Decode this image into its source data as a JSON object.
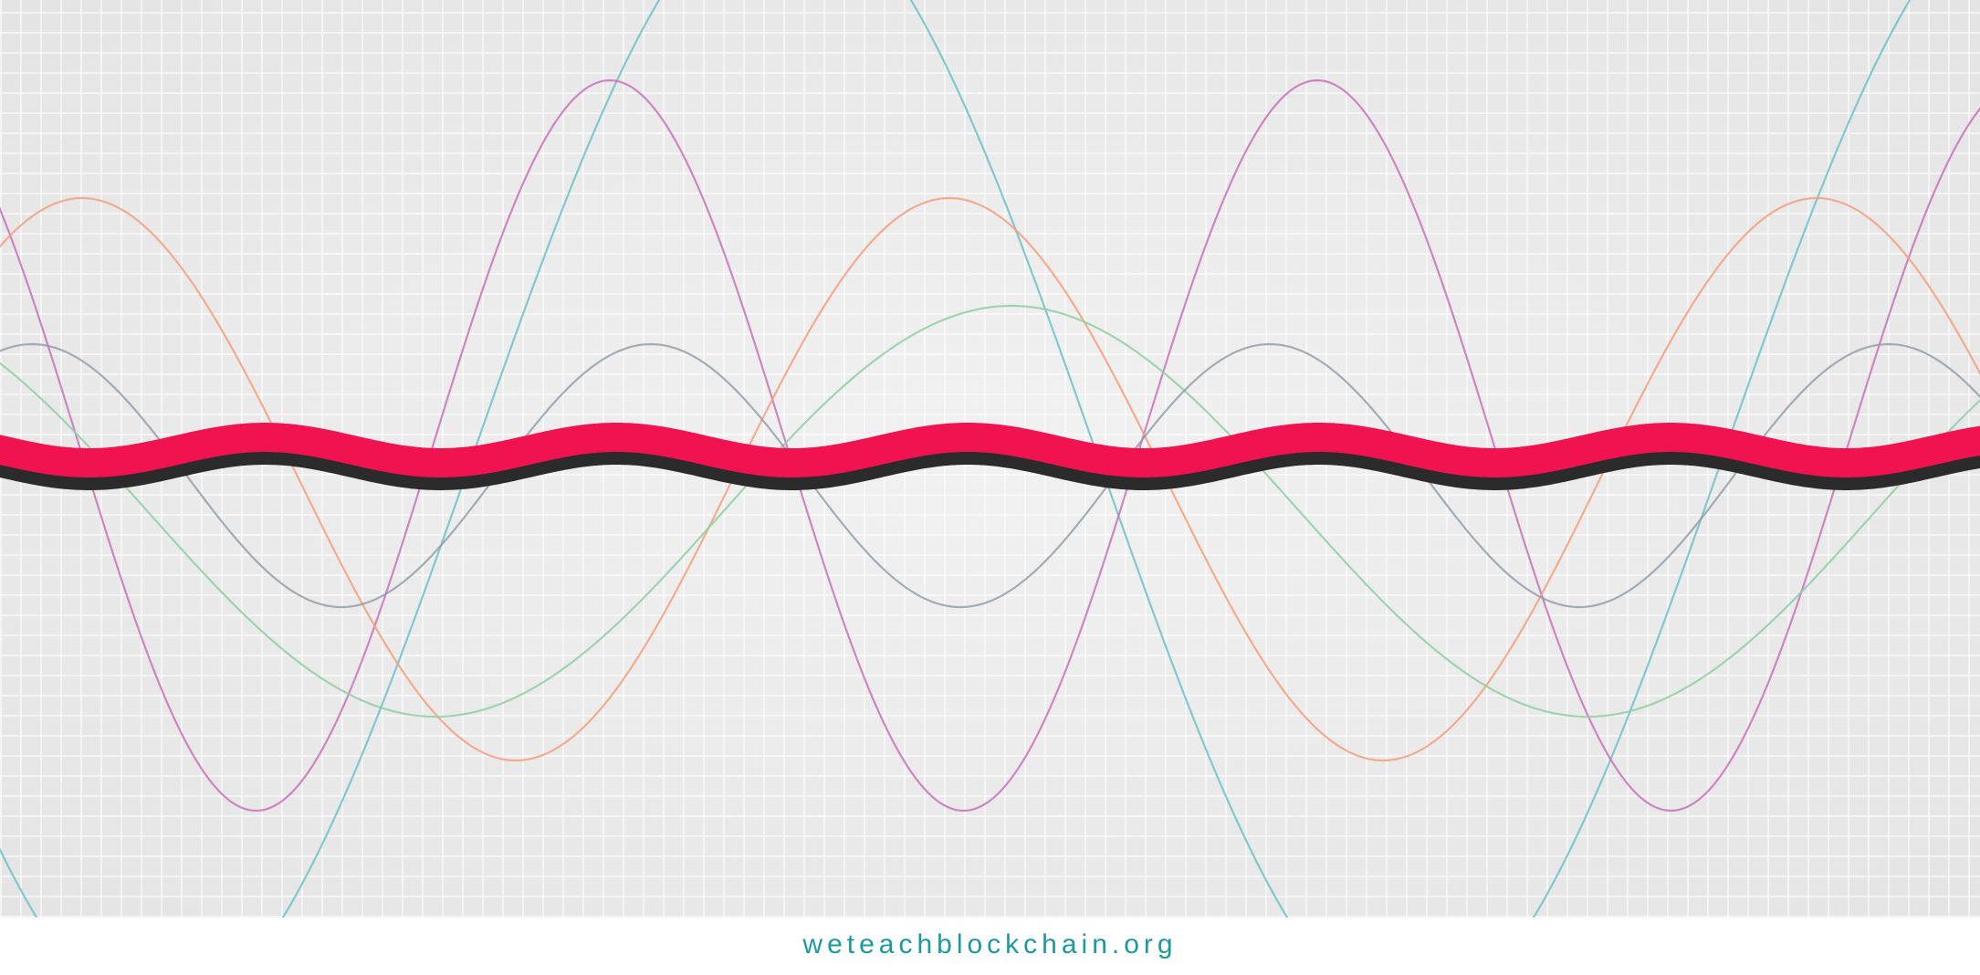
{
  "footer": {
    "url_text": "weteachblockchain.org"
  },
  "colors": {
    "background": "#e9e9e9",
    "accent_wave": "#f0134f",
    "accent_shadow": "#2b2b2b",
    "brand_text": "#1a9aa0",
    "wave_teal": "#6cc3c9",
    "wave_magenta": "#c86ab8",
    "wave_orange": "#f3a07e",
    "wave_green": "#8fcfa5",
    "wave_slate": "#8e9ba6"
  }
}
